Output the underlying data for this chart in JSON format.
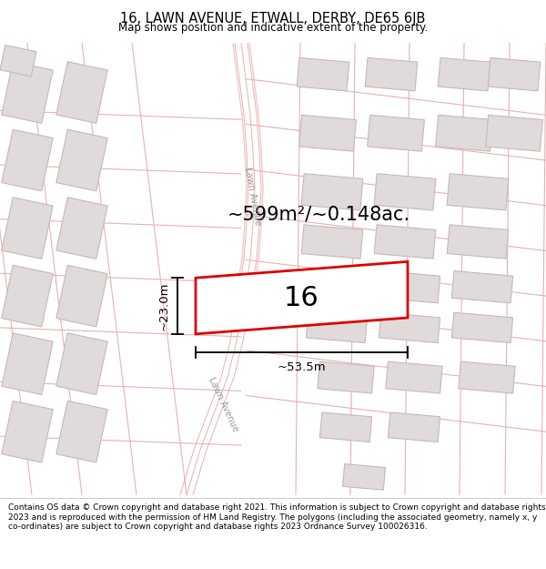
{
  "title": "16, LAWN AVENUE, ETWALL, DERBY, DE65 6JB",
  "subtitle": "Map shows position and indicative extent of the property.",
  "area_text": "~599m²/~0.148ac.",
  "property_number": "16",
  "dim_width": "~53.5m",
  "dim_height": "~23.0m",
  "street_label_upper": "Lawn Avenue",
  "street_label_lower": "Lawn Avenue",
  "footer_text": "Contains OS data © Crown copyright and database right 2021. This information is subject to Crown copyright and database rights 2023 and is reproduced with the permission of HM Land Registry. The polygons (including the associated geometry, namely x, y co-ordinates) are subject to Crown copyright and database rights 2023 Ordnance Survey 100026316.",
  "road_color": "#f2c8c8",
  "road_line_color": "#e8b0b0",
  "building_fill": "#e0dada",
  "building_edge": "#c8b8b8",
  "plot_outline_color": "#dd0000",
  "bg_color": "#ffffff",
  "title_color": "#000000",
  "footer_color": "#000000",
  "dim_color": "#000000",
  "street_color": "#999999",
  "footer_line_color": "#cccccc"
}
